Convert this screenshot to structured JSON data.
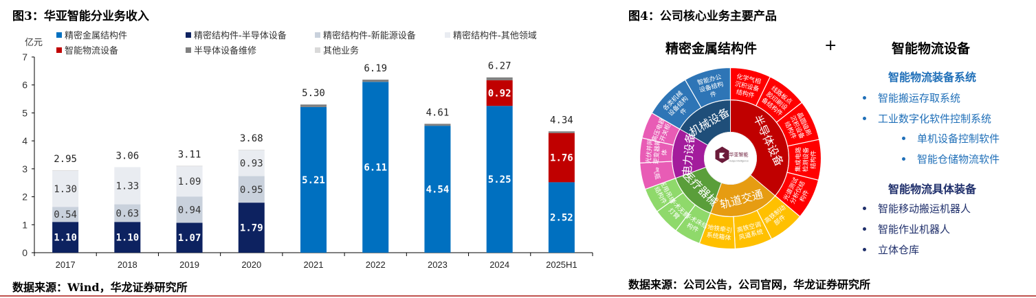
{
  "left": {
    "figure_label": "图3：华亚智能分业务收入",
    "unit": "亿元",
    "source": "数据来源：Wind，华龙证券研究所"
  },
  "right": {
    "figure_label": "图4：公司核心业务主要产品",
    "heading_left": "精密金属结构件",
    "plus": "+",
    "heading_right": "智能物流设备",
    "section1": {
      "title": "智能物流装备系统",
      "items": [
        "智能搬运存取系统",
        "工业数字化软件控制系统"
      ],
      "subitems": [
        "单机设备控制软件",
        "智能仓储物流软件"
      ]
    },
    "section2": {
      "title": "智能物流具体装备",
      "items": [
        "智能移动搬运机器人",
        "智能作业机器人",
        "立体仓库"
      ]
    },
    "source": "数据来源：公司公告，公司官网，华龙证券研究所",
    "sunburst": {
      "center_logo": "华亚智能",
      "center_logo_sub": "Huaya Intelligence",
      "inner": [
        {
          "label": "机械设备",
          "color": "#1f4e79"
        },
        {
          "label": "半导体设备",
          "color": "#c00000"
        },
        {
          "label": "轨道交通",
          "color": "#e69c12"
        },
        {
          "label": "医疗器械",
          "color": "#5a9e3a"
        },
        {
          "label": "电力设备",
          "color": "#a31c9c"
        }
      ],
      "outer": [
        {
          "label": "智能办公设备结构件",
          "parent": "机械设备",
          "color": "#2e75b6"
        },
        {
          "label": "化学气相沉积设备结构件",
          "parent": "半导体设备",
          "color": "#ff0000"
        },
        {
          "label": "线路板点胶印刷设备结构件",
          "parent": "半导体设备",
          "color": "#ff0000"
        },
        {
          "label": "晶圆级刷沉积设备结构件",
          "parent": "半导体设备",
          "color": "#ff0000"
        },
        {
          "label": "集成电路检测设备结构件",
          "parent": "半导体设备",
          "color": "#ff0000"
        },
        {
          "label": "光谱测试分析仪结构件",
          "parent": "半导体设备",
          "color": "#ff0000"
        },
        {
          "label": "高铁制动部件",
          "parent": "轨道交通",
          "color": "#ffc000"
        },
        {
          "label": "高铁空调风道系统",
          "parent": "轨道交通",
          "color": "#ffc000"
        },
        {
          "label": "地铁牵引系统箱体",
          "parent": "轨道交通",
          "color": "#ffc000"
        },
        {
          "label": "手术床结构件",
          "parent": "医疗器械",
          "color": "#8fd96b"
        },
        {
          "label": "手术无影灯臂",
          "parent": "医疗器械",
          "color": "#8fd96b"
        },
        {
          "label": "医用吊塔结构件",
          "parent": "医疗器械",
          "color": "#8fd96b"
        },
        {
          "label": "气瓶",
          "parent": "电力设备",
          "color": "#e85cb5"
        },
        {
          "label": "光伏并网逆变器箱体",
          "parent": "电力设备",
          "color": "#e85cb5"
        },
        {
          "label": "高压电器开关柜",
          "parent": "电力设备",
          "color": "#e85cb5"
        },
        {
          "label": "各类机械设备结构件",
          "parent": "机械设备",
          "color": "#2e75b6"
        }
      ]
    }
  },
  "chart_data": {
    "type": "bar",
    "stacked": true,
    "title": "图3：华亚智能分业务收入",
    "xlabel": "",
    "ylabel": "亿元",
    "ylim": [
      0,
      7
    ],
    "yticks": [
      0,
      1,
      2,
      3,
      4,
      5,
      6,
      7
    ],
    "grid": false,
    "legend_position": "top",
    "categories": [
      "2017",
      "2018",
      "2019",
      "2020",
      "2021",
      "2022",
      "2023",
      "2024",
      "2025H1"
    ],
    "series": [
      {
        "name": "精密金属结构件",
        "color": "#0070c0",
        "label_color": "#ffffff",
        "values": [
          0,
          0,
          0,
          0,
          5.21,
          6.11,
          4.54,
          5.25,
          2.52
        ]
      },
      {
        "name": "精密结构件-半导体设备",
        "color": "#0d2260",
        "label_color": "#ffffff",
        "values": [
          1.1,
          1.1,
          1.07,
          1.79,
          0,
          0,
          0,
          0,
          0
        ]
      },
      {
        "name": "精密结构件-新能源设备",
        "color": "#c9d1dc",
        "label_color": "#333333",
        "values": [
          0.54,
          0.63,
          0.94,
          0.95,
          0,
          0,
          0,
          0,
          0
        ]
      },
      {
        "name": "精密结构件-其他领域",
        "color": "#e9ecf1",
        "label_color": "#333333",
        "values": [
          1.3,
          1.33,
          1.09,
          0.93,
          0,
          0,
          0,
          0,
          0
        ]
      },
      {
        "name": "智能物流设备",
        "color": "#c00000",
        "label_color": "#ffffff",
        "values": [
          0,
          0,
          0,
          0,
          0,
          0,
          0,
          0.92,
          1.76
        ]
      },
      {
        "name": "半导体设备维修",
        "color": "#808080",
        "label_color": "#333333",
        "values": [
          0,
          0,
          0,
          0,
          0.09,
          0.08,
          0.07,
          0.1,
          0.06
        ]
      },
      {
        "name": "其他业务",
        "color": "#d9d9d9",
        "label_color": "#333333",
        "values": [
          0.01,
          0.0,
          0.01,
          0.01,
          0,
          0,
          0,
          0,
          0
        ]
      }
    ],
    "labeled_series": [
      "精密金属结构件",
      "精密结构件-半导体设备",
      "精密结构件-新能源设备",
      "精密结构件-其他领域",
      "智能物流设备"
    ],
    "totals": [
      2.95,
      3.06,
      3.11,
      3.68,
      5.3,
      6.19,
      4.61,
      6.27,
      4.34
    ]
  }
}
